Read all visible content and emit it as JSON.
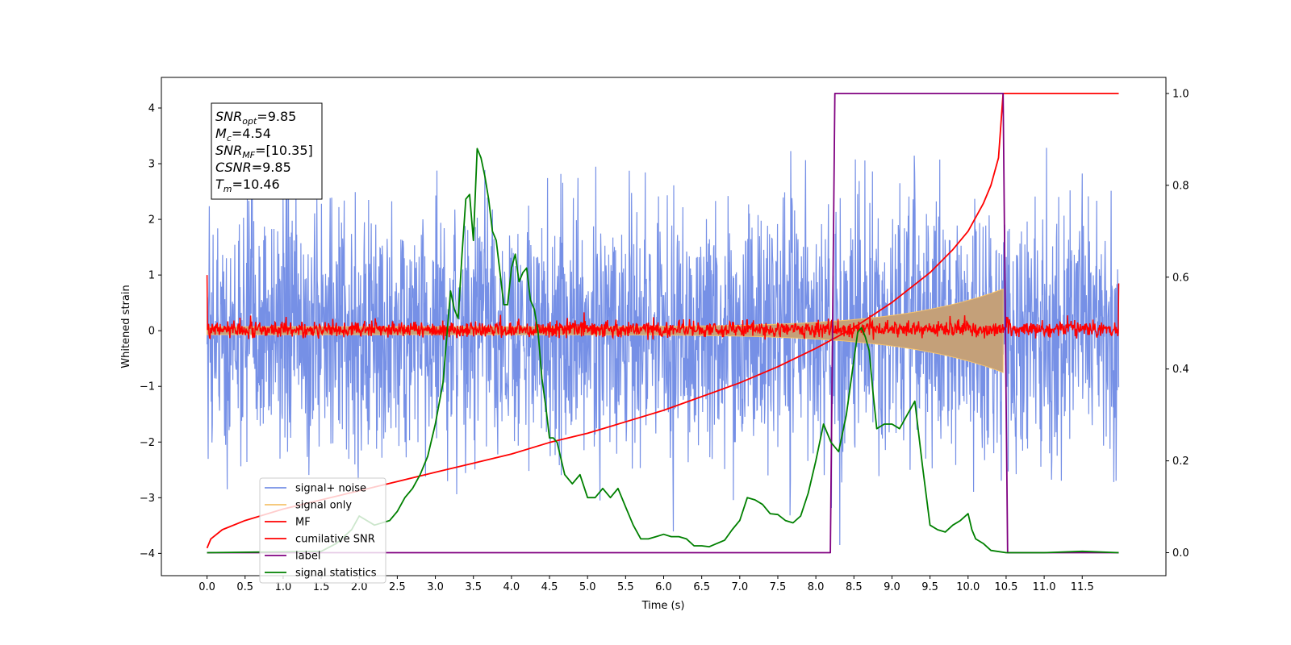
{
  "chart_data": {
    "type": "line",
    "xlabel": "Time (s)",
    "ylabel": "Whitened strain",
    "xlim": [
      -0.6,
      12.6
    ],
    "ylim": [
      -4.4,
      4.55
    ],
    "ylim_right": [
      -0.05,
      1.035
    ],
    "x_ticks": [
      0.0,
      0.5,
      1.0,
      1.5,
      2.0,
      2.5,
      3.0,
      3.5,
      4.0,
      4.5,
      5.0,
      5.5,
      6.0,
      6.5,
      7.0,
      7.5,
      8.0,
      8.5,
      9.0,
      9.5,
      10.0,
      10.5,
      11.0,
      11.5
    ],
    "x_tick_labels": [
      "0.0",
      "0.5",
      "1.0",
      "1.5",
      "2.0",
      "2.5",
      "3.0",
      "3.5",
      "4.0",
      "4.5",
      "5.0",
      "5.5",
      "6.0",
      "6.5",
      "7.0",
      "7.5",
      "8.0",
      "8.5",
      "9.0",
      "9.5",
      "10.0",
      "10.5",
      "11.0",
      "11.5"
    ],
    "y_ticks": [
      -4,
      -3,
      -2,
      -1,
      0,
      1,
      2,
      3,
      4
    ],
    "y_tick_labels": [
      "−4",
      "−3",
      "−2",
      "−1",
      "0",
      "1",
      "2",
      "3",
      "4"
    ],
    "y_right_ticks": [
      0.0,
      0.2,
      0.4,
      0.6,
      0.8,
      1.0
    ],
    "y_right_tick_labels": [
      "0.0",
      "0.2",
      "0.4",
      "0.6",
      "0.8",
      "1.0"
    ],
    "grid": false,
    "legend_position": "lower-left",
    "info_box": [
      {
        "base": "SNR",
        "sub": "opt",
        "value": "=9.85"
      },
      {
        "base": "M",
        "sub": "c",
        "value": "=4.54"
      },
      {
        "base": "SNR",
        "sub": "MF",
        "value": "=[10.35]"
      },
      {
        "base": "CSNR",
        "sub": "",
        "value": "=9.85"
      },
      {
        "base": "T",
        "sub": "m",
        "value": "=10.46"
      }
    ],
    "series": [
      {
        "name": "signal+ noise",
        "color": "#7690e6",
        "axis": "left",
        "style": "noise band",
        "x_range": [
          0.0,
          11.98
        ],
        "typical_range": [
          -2.0,
          2.0
        ],
        "peak_max": 4.17,
        "peak_min": -3.85
      },
      {
        "name": "signal only",
        "color": "#f5c26b",
        "axis": "left",
        "style": "chirp envelope",
        "x_range": [
          0.0,
          10.46
        ],
        "start_amplitude": 0.07,
        "end_amplitude": 0.75
      },
      {
        "name": "MF",
        "color": "#ff0000",
        "axis": "left",
        "style": "noise band",
        "x_range": [
          0.0,
          11.98
        ],
        "typical_range": [
          -0.1,
          0.15
        ],
        "peak_max": 0.33,
        "peak_min": -0.18,
        "start_value": 1.0,
        "end_value": 0.85
      },
      {
        "name": "cumilative SNR",
        "color": "#ff0000",
        "axis": "right",
        "x": [
          0.0,
          0.05,
          0.2,
          0.5,
          1.0,
          1.5,
          2.0,
          2.5,
          3.0,
          3.5,
          4.0,
          4.5,
          5.0,
          5.5,
          6.0,
          6.5,
          7.0,
          7.5,
          8.0,
          8.5,
          9.0,
          9.5,
          9.8,
          10.0,
          10.2,
          10.3,
          10.4,
          10.46,
          11.98
        ],
        "y": [
          0.01,
          0.03,
          0.05,
          0.07,
          0.095,
          0.115,
          0.135,
          0.155,
          0.175,
          0.195,
          0.215,
          0.24,
          0.26,
          0.285,
          0.31,
          0.34,
          0.37,
          0.405,
          0.445,
          0.49,
          0.545,
          0.61,
          0.66,
          0.7,
          0.76,
          0.8,
          0.86,
          1.0,
          1.0
        ]
      },
      {
        "name": "label",
        "color": "#800080",
        "axis": "right",
        "x": [
          0.0,
          8.19,
          8.25,
          10.46,
          10.52,
          11.98
        ],
        "y": [
          0.0,
          0.0,
          1.0,
          1.0,
          0.0,
          0.0
        ]
      },
      {
        "name": "signal statistics",
        "color": "#008000",
        "axis": "right",
        "x": [
          0.0,
          1.5,
          1.7,
          1.9,
          2.0,
          2.2,
          2.4,
          2.5,
          2.6,
          2.7,
          2.8,
          2.9,
          3.0,
          3.1,
          3.2,
          3.25,
          3.3,
          3.35,
          3.4,
          3.45,
          3.5,
          3.55,
          3.6,
          3.65,
          3.7,
          3.75,
          3.8,
          3.85,
          3.9,
          3.95,
          4.0,
          4.05,
          4.1,
          4.15,
          4.2,
          4.25,
          4.3,
          4.35,
          4.4,
          4.45,
          4.5,
          4.55,
          4.6,
          4.7,
          4.8,
          4.9,
          5.0,
          5.1,
          5.2,
          5.3,
          5.4,
          5.5,
          5.6,
          5.7,
          5.8,
          5.9,
          6.0,
          6.1,
          6.2,
          6.3,
          6.4,
          6.5,
          6.6,
          6.7,
          6.8,
          6.9,
          7.0,
          7.1,
          7.2,
          7.3,
          7.4,
          7.5,
          7.6,
          7.7,
          7.8,
          7.9,
          8.0,
          8.1,
          8.2,
          8.3,
          8.4,
          8.5,
          8.55,
          8.6,
          8.65,
          8.7,
          8.75,
          8.8,
          8.9,
          9.0,
          9.1,
          9.2,
          9.3,
          9.4,
          9.5,
          9.6,
          9.7,
          9.8,
          9.9,
          10.0,
          10.05,
          10.1,
          10.2,
          10.3,
          10.5,
          11.0,
          11.5,
          11.98
        ],
        "y": [
          0.0,
          0.003,
          0.02,
          0.05,
          0.08,
          0.06,
          0.07,
          0.09,
          0.12,
          0.14,
          0.17,
          0.21,
          0.28,
          0.37,
          0.57,
          0.53,
          0.51,
          0.65,
          0.77,
          0.78,
          0.68,
          0.88,
          0.86,
          0.82,
          0.77,
          0.7,
          0.68,
          0.61,
          0.54,
          0.54,
          0.62,
          0.65,
          0.59,
          0.61,
          0.62,
          0.55,
          0.53,
          0.48,
          0.38,
          0.32,
          0.25,
          0.25,
          0.24,
          0.17,
          0.15,
          0.17,
          0.12,
          0.12,
          0.14,
          0.12,
          0.14,
          0.1,
          0.06,
          0.03,
          0.03,
          0.035,
          0.04,
          0.035,
          0.035,
          0.03,
          0.015,
          0.015,
          0.013,
          0.02,
          0.027,
          0.05,
          0.07,
          0.12,
          0.115,
          0.105,
          0.085,
          0.083,
          0.07,
          0.065,
          0.08,
          0.13,
          0.2,
          0.28,
          0.24,
          0.22,
          0.3,
          0.42,
          0.48,
          0.49,
          0.47,
          0.44,
          0.35,
          0.27,
          0.28,
          0.28,
          0.27,
          0.3,
          0.33,
          0.19,
          0.06,
          0.05,
          0.045,
          0.06,
          0.07,
          0.085,
          0.05,
          0.03,
          0.02,
          0.005,
          0.0,
          0.0,
          0.003,
          0.0
        ]
      }
    ]
  }
}
